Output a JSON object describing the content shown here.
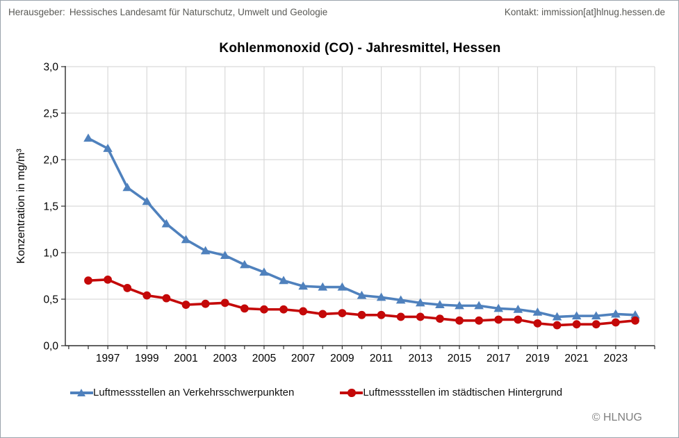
{
  "header": {
    "publisher_label": "Herausgeber:",
    "publisher": "Hessisches Landesamt für Naturschutz, Umwelt und Geologie",
    "contact": "Kontakt: immission[at]hlnug.hessen.de"
  },
  "footer": {
    "copyright": "© HLNUG"
  },
  "colors": {
    "traffic_series": "#4f81bd",
    "urban_series": "#c40808",
    "gridline": "#d9d9d9",
    "axis": "#2b2b2b",
    "tick_label": "#000000"
  },
  "chart_data": {
    "type": "line",
    "title": "Kohlenmonoxid (CO) - Jahresmittel, Hessen",
    "xlabel": "",
    "ylabel": "Konzentration in mg/m³",
    "ylim": [
      0.0,
      3.0
    ],
    "y_tick_interval": 0.5,
    "grid": true,
    "legend_position": "bottom",
    "x": [
      1996,
      1997,
      1998,
      1999,
      2000,
      2001,
      2002,
      2003,
      2004,
      2005,
      2006,
      2007,
      2008,
      2009,
      2010,
      2011,
      2012,
      2013,
      2014,
      2015,
      2016,
      2017,
      2018,
      2019,
      2020,
      2021,
      2022,
      2023,
      2024
    ],
    "x_tick_labels": [
      "1997",
      "1999",
      "2001",
      "2003",
      "2005",
      "2007",
      "2009",
      "2011",
      "2013",
      "2015",
      "2017",
      "2019",
      "2021",
      "2023"
    ],
    "y_tick_labels": [
      "0,0",
      "0,5",
      "1,0",
      "1,5",
      "2,0",
      "2,5",
      "3,0"
    ],
    "series": [
      {
        "name": "Luftmessstellen an Verkehrsschwerpunkten",
        "marker": "triangle",
        "color": "#4f81bd",
        "values": [
          2.23,
          2.12,
          1.7,
          1.55,
          1.31,
          1.14,
          1.02,
          0.97,
          0.87,
          0.79,
          0.7,
          0.64,
          0.63,
          0.63,
          0.54,
          0.52,
          0.49,
          0.46,
          0.44,
          0.43,
          0.43,
          0.4,
          0.39,
          0.36,
          0.31,
          0.32,
          0.32,
          0.34,
          0.33
        ]
      },
      {
        "name": "Luftmessstellen im städtischen Hintergrund",
        "marker": "circle",
        "color": "#c40808",
        "values": [
          0.7,
          0.71,
          0.62,
          0.54,
          0.51,
          0.44,
          0.45,
          0.46,
          0.4,
          0.39,
          0.39,
          0.37,
          0.34,
          0.35,
          0.33,
          0.33,
          0.31,
          0.31,
          0.29,
          0.27,
          0.27,
          0.28,
          0.28,
          0.24,
          0.22,
          0.23,
          0.23,
          0.25,
          0.27
        ]
      }
    ]
  }
}
